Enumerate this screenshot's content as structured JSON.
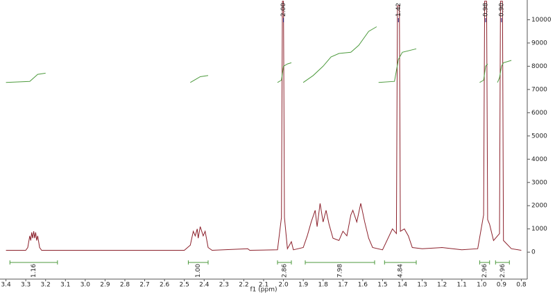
{
  "chart_data": {
    "type": "nmr",
    "x_label": "f1 (ppm)",
    "xlim": [
      3.43,
      0.77
    ],
    "ylim": [
      -1100,
      10850
    ],
    "xticks": [
      3.4,
      3.3,
      3.2,
      3.1,
      {
        "value": 3,
        "label": "3.0"
      },
      2.9,
      2.8,
      2.7,
      2.6,
      2.5,
      2.4,
      2.3,
      2.2,
      2.1,
      {
        "value": 2,
        "label": "2.0"
      },
      1.9,
      1.8,
      1.7,
      1.6,
      1.5,
      1.4,
      1.3,
      1.2,
      1.1,
      {
        "value": 1,
        "label": "1.0"
      },
      0.9,
      0.8
    ],
    "yticks": [
      0,
      1000,
      2000,
      3000,
      4000,
      5000,
      6000,
      7000,
      8000,
      9000,
      10000
    ],
    "spectrum": {
      "color": "#8b1f2a",
      "x": [
        3.4,
        3.3,
        3.29,
        3.28,
        3.275,
        3.27,
        3.265,
        3.26,
        3.255,
        3.25,
        3.245,
        3.24,
        3.23,
        3.22,
        2.5,
        2.47,
        2.455,
        2.445,
        2.435,
        2.43,
        2.42,
        2.405,
        2.395,
        2.38,
        2.36,
        2.18,
        2.17,
        2.03,
        2.01,
        2.005,
        2.0,
        1.995,
        1.98,
        1.96,
        1.95,
        1.9,
        1.88,
        1.86,
        1.84,
        1.83,
        1.815,
        1.8,
        1.785,
        1.77,
        1.75,
        1.72,
        1.7,
        1.68,
        1.66,
        1.65,
        1.63,
        1.61,
        1.59,
        1.57,
        1.55,
        1.5,
        1.45,
        1.43,
        1.425,
        1.415,
        1.41,
        1.39,
        1.37,
        1.35,
        1.3,
        1.2,
        1.1,
        1.02,
        0.99,
        0.985,
        0.975,
        0.97,
        0.96,
        0.94,
        0.91,
        0.905,
        0.895,
        0.89,
        0.85,
        0.8
      ],
      "values": [
        80,
        80,
        200,
        700,
        500,
        850,
        600,
        900,
        600,
        850,
        500,
        700,
        200,
        80,
        80,
        300,
        900,
        700,
        1000,
        600,
        1100,
        700,
        900,
        200,
        80,
        150,
        80,
        100,
        1500,
        10800,
        10800,
        1500,
        150,
        450,
        100,
        200,
        700,
        1300,
        1800,
        1100,
        2100,
        1300,
        1800,
        1200,
        600,
        500,
        900,
        700,
        1600,
        1800,
        1300,
        2100,
        1300,
        600,
        200,
        100,
        1000,
        800,
        10600,
        10600,
        900,
        1000,
        700,
        200,
        150,
        200,
        100,
        150,
        1600,
        10800,
        10800,
        1400,
        1200,
        500,
        800,
        10800,
        10800,
        500,
        150,
        80
      ]
    },
    "integral_curves": {
      "color": "#4c9a3c",
      "series": [
        {
          "x": [
            3.4,
            3.28,
            3.24,
            3.2
          ],
          "values": [
            7300,
            7350,
            7650,
            7700
          ]
        },
        {
          "x": [
            2.47,
            2.44,
            2.42,
            2.38
          ],
          "values": [
            7300,
            7450,
            7550,
            7600
          ]
        },
        {
          "x": [
            2.03,
            2.01,
            2.0,
            1.98,
            1.96
          ],
          "values": [
            7300,
            7400,
            8000,
            8100,
            8150
          ]
        },
        {
          "x": [
            1.9,
            1.85,
            1.8,
            1.76,
            1.72,
            1.66,
            1.62,
            1.57,
            1.53
          ],
          "values": [
            7300,
            7600,
            8000,
            8400,
            8550,
            8600,
            8900,
            9500,
            9700
          ]
        },
        {
          "x": [
            1.52,
            1.44,
            1.42,
            1.4,
            1.33
          ],
          "values": [
            7300,
            7350,
            8300,
            8600,
            8750
          ]
        },
        {
          "x": [
            1.01,
            0.99,
            0.98,
            0.97
          ],
          "values": [
            7300,
            7400,
            8000,
            8100
          ]
        },
        {
          "x": [
            0.92,
            0.91,
            0.9,
            0.89,
            0.85
          ],
          "values": [
            7300,
            7500,
            8000,
            8150,
            8250
          ]
        }
      ]
    },
    "integrals": [
      {
        "from": 3.38,
        "to": 3.14,
        "label": "1.16"
      },
      {
        "from": 2.48,
        "to": 2.38,
        "label": "1.00"
      },
      {
        "from": 2.03,
        "to": 1.96,
        "label": "2.86"
      },
      {
        "from": 1.89,
        "to": 1.54,
        "label": "7.98"
      },
      {
        "from": 1.49,
        "to": 1.33,
        "label": "4.84"
      },
      {
        "from": 1.01,
        "to": 0.96,
        "label": "2.96"
      },
      {
        "from": 0.93,
        "to": 0.86,
        "label": "2.96"
      }
    ],
    "peak_labels": [
      {
        "value": 2.0,
        "label": "2.00"
      },
      {
        "value": 1.42,
        "label": "1.42"
      },
      {
        "value": 0.98,
        "label": "0.98"
      },
      {
        "value": 0.9,
        "label": "0.90"
      }
    ]
  }
}
